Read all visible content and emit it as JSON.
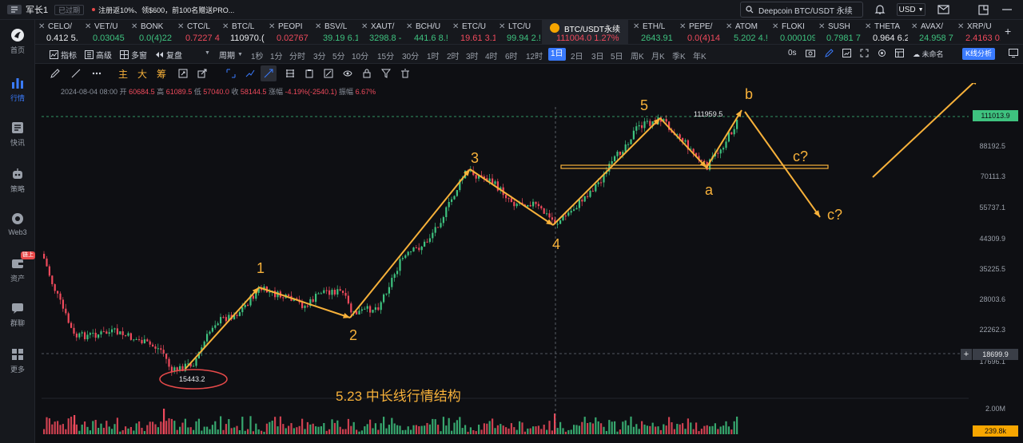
{
  "topbar": {
    "user": "军长1",
    "status_badge": "已过期",
    "promo": "注册返10%、领$600，前100名赠送PRO...",
    "search_placeholder": "Deepcoin BTC/USDT 永续",
    "currency": "USD"
  },
  "sidebar": [
    {
      "label": "首页",
      "icon": "home-icon"
    },
    {
      "label": "行情",
      "icon": "market-icon",
      "active": true
    },
    {
      "label": "快讯",
      "icon": "news-icon"
    },
    {
      "label": "策略",
      "icon": "robot-icon"
    },
    {
      "label": "Web3",
      "icon": "web3-icon"
    },
    {
      "label": "资产",
      "icon": "wallet-icon",
      "hot": "链上"
    },
    {
      "label": "群聊",
      "icon": "chat-icon"
    },
    {
      "label": "更多",
      "icon": "more-icon"
    }
  ],
  "tickers": [
    {
      "symbol": "CELO/",
      "value": "0.412 5.",
      "trend": "wt"
    },
    {
      "symbol": "VET/U",
      "value": "0.03045",
      "trend": "up"
    },
    {
      "symbol": "BONK",
      "value": "0.0(4)22",
      "trend": "up"
    },
    {
      "symbol": "CTC/L",
      "value": "0.7227 4",
      "trend": "dn"
    },
    {
      "symbol": "BTC/L",
      "value": "110970.(",
      "trend": "wt"
    },
    {
      "symbol": "PEOPI",
      "value": "0.02767",
      "trend": "dn"
    },
    {
      "symbol": "BSV/L",
      "value": "39.19 6.1",
      "trend": "up"
    },
    {
      "symbol": "XAUT/",
      "value": "3298.8 -",
      "trend": "up"
    },
    {
      "symbol": "BCH/U",
      "value": "441.6 8.!",
      "trend": "up"
    },
    {
      "symbol": "ETC/U",
      "value": "19.61 3.1",
      "trend": "dn"
    },
    {
      "symbol": "LTC/U",
      "value": "99.94 2.!",
      "trend": "up"
    },
    {
      "symbol": "BTC/USDT永续",
      "value": "111004.0 1.27%",
      "trend": "dn",
      "active": true
    },
    {
      "symbol": "ETH/L",
      "value": "2643.91",
      "trend": "up"
    },
    {
      "symbol": "PEPE/",
      "value": "0.0(4)14",
      "trend": "dn"
    },
    {
      "symbol": "ATOM",
      "value": "5.202 4.!",
      "trend": "up"
    },
    {
      "symbol": "FLOKI",
      "value": "0.000109",
      "trend": "up"
    },
    {
      "symbol": "SUSH",
      "value": "0.7981 7",
      "trend": "up"
    },
    {
      "symbol": "THETA",
      "value": "0.964 6.2",
      "trend": "wt"
    },
    {
      "symbol": "AVAX/",
      "value": "24.958 7",
      "trend": "up"
    },
    {
      "symbol": "XRP/U",
      "value": "2.4163 0.",
      "trend": "dn"
    }
  ],
  "toolbar": {
    "indicator": "指标",
    "advanced": "高级",
    "multi": "多窗",
    "replay": "复盘",
    "period": "周期",
    "intervals": [
      "1秒",
      "1分",
      "分时",
      "3分",
      "5分",
      "10分",
      "15分",
      "30分",
      "1时",
      "2时",
      "3时",
      "4时",
      "6时",
      "12时",
      "1日",
      "2日",
      "3日",
      "5日",
      "周K",
      "月K",
      "季K",
      "年K"
    ],
    "selected_interval": "1日",
    "timer": "0s",
    "unnamed": "未命名",
    "kline_analysis": "K线分析"
  },
  "drawbar": {
    "chars": [
      "主",
      "大",
      "筹"
    ]
  },
  "ohlc": {
    "date": "2024-08-04 08:00",
    "open_label": "开",
    "open": "60684.5",
    "high_label": "高",
    "high": "61089.5",
    "low_label": "低",
    "low": "57040.0",
    "close_label": "收",
    "close": "58144.5",
    "change_label": "涨幅",
    "change": "-4.19%(-2540.1)",
    "amp_label": "振幅",
    "amp": "6.67%"
  },
  "chart_data": {
    "type": "candlestick",
    "y_axis_labels": [
      "88192.5",
      "70111.3",
      "55737.1",
      "44309.9",
      "35225.5",
      "28003.6",
      "22262.3",
      "17696.1"
    ],
    "price_tags": {
      "last": "111013.9",
      "crosshair": "18699.9"
    },
    "volume_axis": {
      "top": "2.00M",
      "tag": "239.8k"
    },
    "annotations": {
      "low_price": "15443.2",
      "high_price": "111959.5",
      "waves": [
        "1",
        "2",
        "3",
        "4",
        "5",
        "a",
        "b",
        "c?",
        "c?"
      ],
      "caption": "5.23 中长线行情结构"
    }
  },
  "colors": {
    "accent": "#3a7bff",
    "up": "#3ec27f",
    "down": "#ef4a5c",
    "annotation": "#f7b13a"
  }
}
